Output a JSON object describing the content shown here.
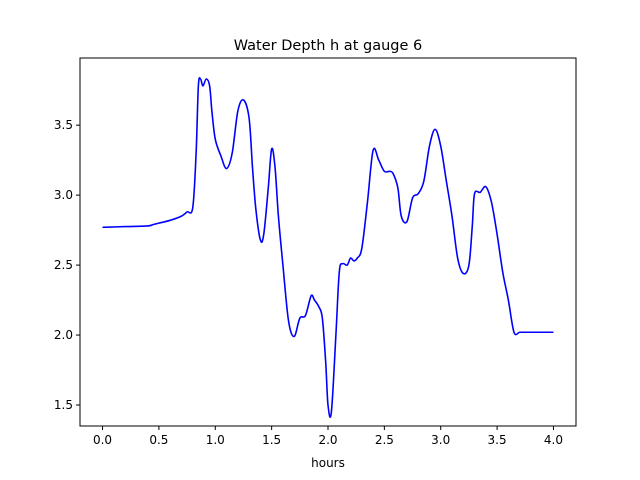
{
  "chart_data": {
    "type": "line",
    "title": "Water Depth h at gauge 6",
    "xlabel": "hours",
    "ylabel": "",
    "xlim": [
      -0.2,
      4.2
    ],
    "ylim": [
      1.35,
      3.98
    ],
    "xticks": [
      0.0,
      0.5,
      1.0,
      1.5,
      2.0,
      2.5,
      3.0,
      3.5,
      4.0
    ],
    "xtick_labels": [
      "0.0",
      "0.5",
      "1.0",
      "1.5",
      "2.0",
      "2.5",
      "3.0",
      "3.5",
      "4.0"
    ],
    "yticks": [
      1.5,
      2.0,
      2.5,
      3.0,
      3.5
    ],
    "ytick_labels": [
      "1.5",
      "2.0",
      "2.5",
      "3.0",
      "3.5"
    ],
    "grid": false,
    "series": [
      {
        "color": "#0000ff",
        "x": [
          0.0,
          0.2,
          0.4,
          0.45,
          0.5,
          0.6,
          0.7,
          0.75,
          0.8,
          0.83,
          0.85,
          0.87,
          0.89,
          0.92,
          0.95,
          0.97,
          1.0,
          1.05,
          1.1,
          1.15,
          1.2,
          1.25,
          1.3,
          1.33,
          1.36,
          1.4,
          1.43,
          1.47,
          1.5,
          1.53,
          1.56,
          1.6,
          1.65,
          1.7,
          1.75,
          1.8,
          1.85,
          1.88,
          1.92,
          1.95,
          1.98,
          2.0,
          2.03,
          2.07,
          2.1,
          2.13,
          2.17,
          2.2,
          2.23,
          2.26,
          2.3,
          2.35,
          2.4,
          2.45,
          2.5,
          2.55,
          2.58,
          2.62,
          2.65,
          2.7,
          2.75,
          2.8,
          2.85,
          2.9,
          2.95,
          3.0,
          3.05,
          3.1,
          3.15,
          3.2,
          3.25,
          3.28,
          3.3,
          3.35,
          3.4,
          3.45,
          3.5,
          3.55,
          3.6,
          3.65,
          3.7,
          3.75,
          3.8,
          3.83,
          3.86,
          3.9,
          3.95,
          4.0
        ],
        "y": [
          2.77,
          2.775,
          2.78,
          2.79,
          2.8,
          2.82,
          2.85,
          2.88,
          2.91,
          3.3,
          3.78,
          3.83,
          3.78,
          3.83,
          3.78,
          3.6,
          3.4,
          3.28,
          3.19,
          3.3,
          3.6,
          3.68,
          3.55,
          3.2,
          2.9,
          2.68,
          2.72,
          3.05,
          3.33,
          3.2,
          2.85,
          2.5,
          2.1,
          1.99,
          2.12,
          2.14,
          2.28,
          2.25,
          2.2,
          2.12,
          1.8,
          1.5,
          1.45,
          2.0,
          2.45,
          2.51,
          2.5,
          2.55,
          2.53,
          2.55,
          2.62,
          2.95,
          3.32,
          3.25,
          3.17,
          3.17,
          3.15,
          3.05,
          2.85,
          2.81,
          2.98,
          3.01,
          3.1,
          3.35,
          3.47,
          3.35,
          3.1,
          2.85,
          2.55,
          2.44,
          2.5,
          2.78,
          3.01,
          3.02,
          3.06,
          2.95,
          2.72,
          2.45,
          2.25,
          2.02,
          2.02,
          2.02,
          2.02,
          2.02,
          2.02,
          2.02,
          2.02,
          2.02
        ]
      }
    ]
  }
}
